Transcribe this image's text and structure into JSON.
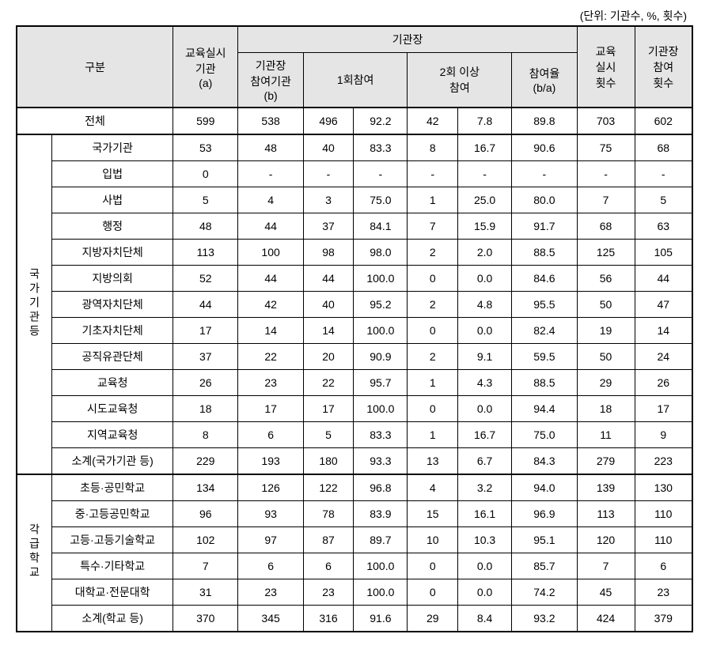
{
  "unit_label": "(단위: 기관수, %, 횟수)",
  "headers": {
    "category": "구분",
    "col_a": "교육실시\n기관\n(a)",
    "head_group": "기관장",
    "col_b": "기관장\n참여기관\n(b)",
    "col_c": "1회참여",
    "col_d": "2회 이상\n참여",
    "col_e": "참여율\n(b/a)",
    "col_f": "교육\n실시\n횟수",
    "col_g": "기관장\n참여\n횟수"
  },
  "group_labels": {
    "national": "국가기관등",
    "school": "각급학교"
  },
  "rows": {
    "total": {
      "label": "전체",
      "a": "599",
      "b": "538",
      "c1": "496",
      "c2": "92.2",
      "d1": "42",
      "d2": "7.8",
      "e": "89.8",
      "f": "703",
      "g": "602"
    },
    "r1": {
      "label": "국가기관",
      "a": "53",
      "b": "48",
      "c1": "40",
      "c2": "83.3",
      "d1": "8",
      "d2": "16.7",
      "e": "90.6",
      "f": "75",
      "g": "68"
    },
    "r2": {
      "label": "입법",
      "a": "0",
      "b": "-",
      "c1": "-",
      "c2": "-",
      "d1": "-",
      "d2": "-",
      "e": "-",
      "f": "-",
      "g": "-"
    },
    "r3": {
      "label": "사법",
      "a": "5",
      "b": "4",
      "c1": "3",
      "c2": "75.0",
      "d1": "1",
      "d2": "25.0",
      "e": "80.0",
      "f": "7",
      "g": "5"
    },
    "r4": {
      "label": "행정",
      "a": "48",
      "b": "44",
      "c1": "37",
      "c2": "84.1",
      "d1": "7",
      "d2": "15.9",
      "e": "91.7",
      "f": "68",
      "g": "63"
    },
    "r5": {
      "label": "지방자치단체",
      "a": "113",
      "b": "100",
      "c1": "98",
      "c2": "98.0",
      "d1": "2",
      "d2": "2.0",
      "e": "88.5",
      "f": "125",
      "g": "105"
    },
    "r6": {
      "label": "지방의회",
      "a": "52",
      "b": "44",
      "c1": "44",
      "c2": "100.0",
      "d1": "0",
      "d2": "0.0",
      "e": "84.6",
      "f": "56",
      "g": "44"
    },
    "r7": {
      "label": "광역자치단체",
      "a": "44",
      "b": "42",
      "c1": "40",
      "c2": "95.2",
      "d1": "2",
      "d2": "4.8",
      "e": "95.5",
      "f": "50",
      "g": "47"
    },
    "r8": {
      "label": "기초자치단체",
      "a": "17",
      "b": "14",
      "c1": "14",
      "c2": "100.0",
      "d1": "0",
      "d2": "0.0",
      "e": "82.4",
      "f": "19",
      "g": "14"
    },
    "r9": {
      "label": "공직유관단체",
      "a": "37",
      "b": "22",
      "c1": "20",
      "c2": "90.9",
      "d1": "2",
      "d2": "9.1",
      "e": "59.5",
      "f": "50",
      "g": "24"
    },
    "r10": {
      "label": "교육청",
      "a": "26",
      "b": "23",
      "c1": "22",
      "c2": "95.7",
      "d1": "1",
      "d2": "4.3",
      "e": "88.5",
      "f": "29",
      "g": "26"
    },
    "r11": {
      "label": "시도교육청",
      "a": "18",
      "b": "17",
      "c1": "17",
      "c2": "100.0",
      "d1": "0",
      "d2": "0.0",
      "e": "94.4",
      "f": "18",
      "g": "17"
    },
    "r12": {
      "label": "지역교육청",
      "a": "8",
      "b": "6",
      "c1": "5",
      "c2": "83.3",
      "d1": "1",
      "d2": "16.7",
      "e": "75.0",
      "f": "11",
      "g": "9"
    },
    "r13": {
      "label": "소계(국가기관 등)",
      "a": "229",
      "b": "193",
      "c1": "180",
      "c2": "93.3",
      "d1": "13",
      "d2": "6.7",
      "e": "84.3",
      "f": "279",
      "g": "223"
    },
    "s1": {
      "label": "초등·공민학교",
      "a": "134",
      "b": "126",
      "c1": "122",
      "c2": "96.8",
      "d1": "4",
      "d2": "3.2",
      "e": "94.0",
      "f": "139",
      "g": "130"
    },
    "s2": {
      "label": "중·고등공민학교",
      "a": "96",
      "b": "93",
      "c1": "78",
      "c2": "83.9",
      "d1": "15",
      "d2": "16.1",
      "e": "96.9",
      "f": "113",
      "g": "110"
    },
    "s3": {
      "label": "고등·고등기술학교",
      "a": "102",
      "b": "97",
      "c1": "87",
      "c2": "89.7",
      "d1": "10",
      "d2": "10.3",
      "e": "95.1",
      "f": "120",
      "g": "110"
    },
    "s4": {
      "label": "특수·기타학교",
      "a": "7",
      "b": "6",
      "c1": "6",
      "c2": "100.0",
      "d1": "0",
      "d2": "0.0",
      "e": "85.7",
      "f": "7",
      "g": "6"
    },
    "s5": {
      "label": "대학교·전문대학",
      "a": "31",
      "b": "23",
      "c1": "23",
      "c2": "100.0",
      "d1": "0",
      "d2": "0.0",
      "e": "74.2",
      "f": "45",
      "g": "23"
    },
    "s6": {
      "label": "소계(학교 등)",
      "a": "370",
      "b": "345",
      "c1": "316",
      "c2": "91.6",
      "d1": "29",
      "d2": "8.4",
      "e": "93.2",
      "f": "424",
      "g": "379"
    }
  }
}
